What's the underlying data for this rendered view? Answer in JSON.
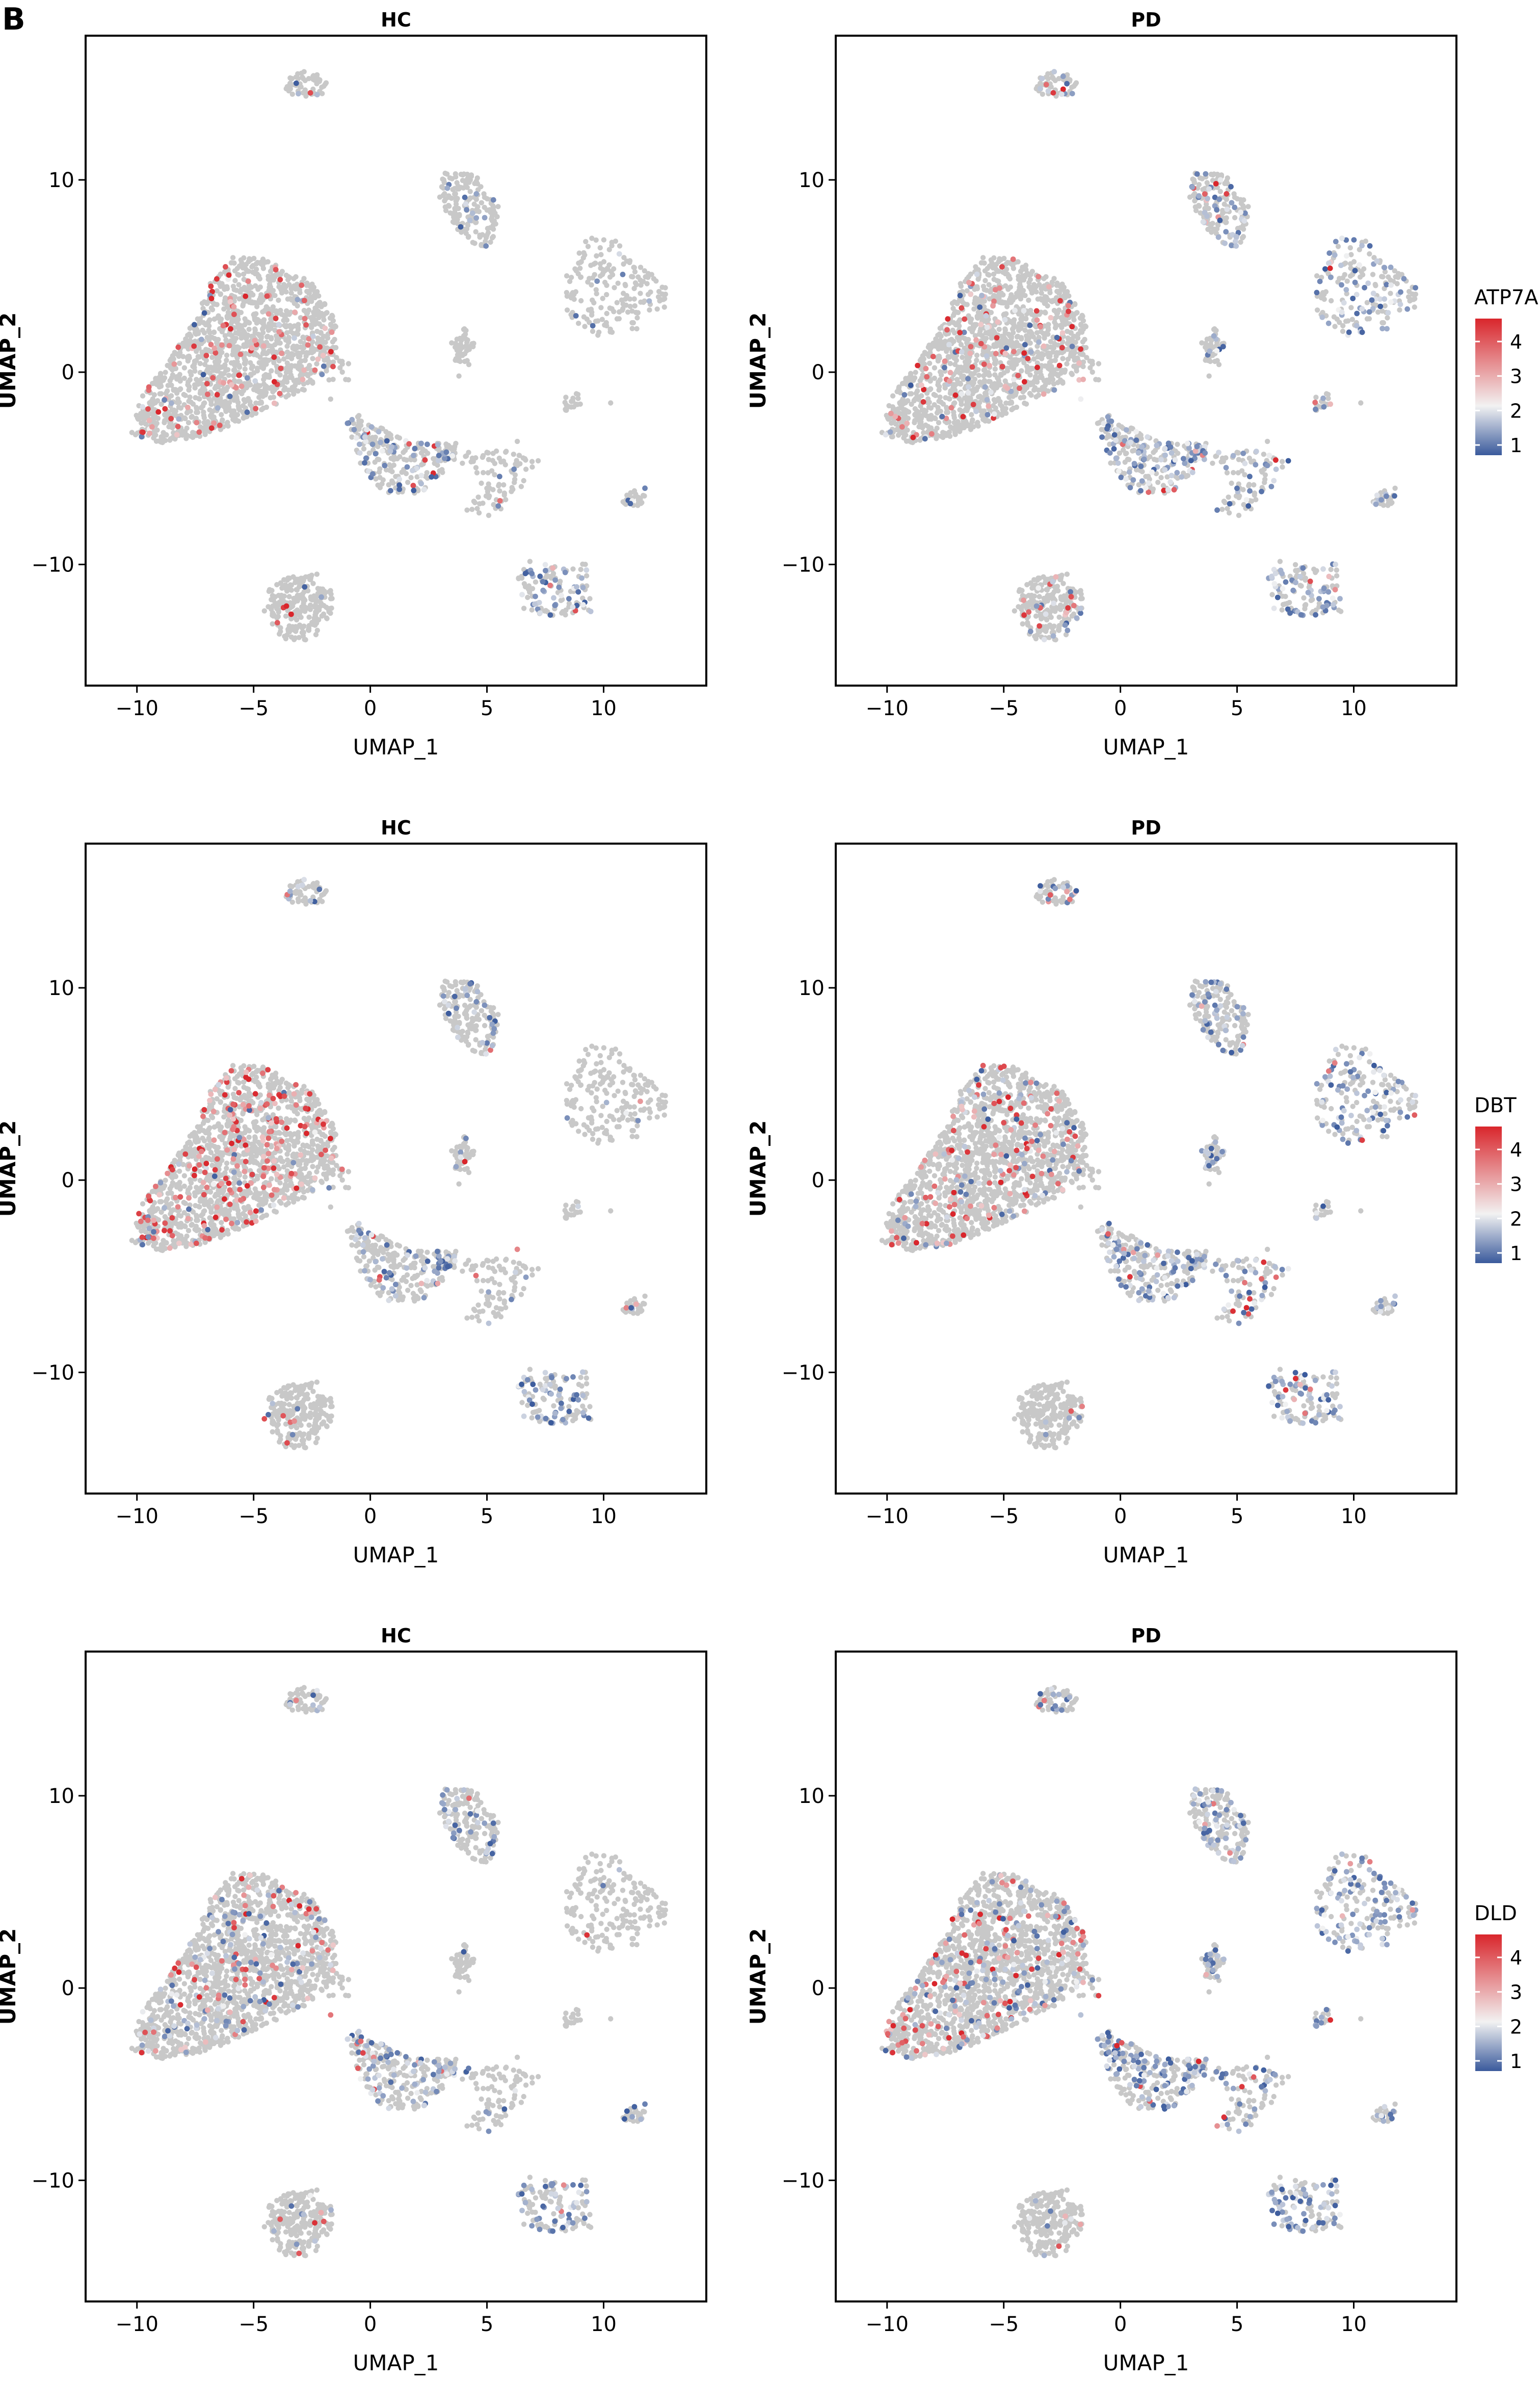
{
  "figure": {
    "panel_letter": "B"
  },
  "chart_data": [
    {
      "type": "scatter",
      "gene": "ATP7A",
      "title": "HC",
      "xlabel": "UMAP_1",
      "ylabel": "UMAP_2",
      "xlim": [
        -12.2,
        14.4
      ],
      "ylim": [
        -16.3,
        17.5
      ],
      "xticks": [
        -10,
        -5,
        0,
        5,
        10
      ],
      "yticks": [
        -10,
        0,
        10
      ],
      "grid": false,
      "color_scale": {
        "name": "ATP7A",
        "ticks": [
          1,
          2,
          3,
          4
        ],
        "low": "#3a5a9c",
        "mid": "#f2f2f2",
        "high": "#d9262c"
      },
      "levels": {
        "base": 0.05,
        "c0": 0.07,
        "c1": 0.06,
        "c2": 0.02,
        "c3": 0.08,
        "c4": 0.3,
        "c5": 0.06,
        "c6": 0.01,
        "c7": 0.4,
        "c8": 0.04,
        "c9": 0.05,
        "c10": 0.05
      },
      "red_share": {
        "c0": 0.8,
        "c1": 0.1,
        "c2": 0.1,
        "c3": 0.1,
        "c4": 0.05,
        "c5": 0.1,
        "c6": 0.1,
        "c7": 0.02,
        "c8": 0.8,
        "c9": 0.1,
        "c10": 0.1
      }
    },
    {
      "type": "scatter",
      "gene": "ATP7A",
      "title": "PD",
      "xlabel": "UMAP_1",
      "ylabel": "UMAP_2",
      "xlim": [
        -12.2,
        14.4
      ],
      "ylim": [
        -16.3,
        17.5
      ],
      "xticks": [
        -10,
        -5,
        0,
        5,
        10
      ],
      "yticks": [
        -10,
        0,
        10
      ],
      "grid": false,
      "color_scale": {
        "name": "ATP7A",
        "ticks": [
          1,
          2,
          3,
          4
        ],
        "low": "#3a5a9c",
        "mid": "#f2f2f2",
        "high": "#d9262c"
      },
      "levels": {
        "base": 0.06,
        "c0": 0.09,
        "c1": 0.28,
        "c2": 0.38,
        "c3": 0.18,
        "c4": 0.4,
        "c5": 0.32,
        "c6": 0.25,
        "c7": 0.35,
        "c8": 0.1,
        "c9": 0.2,
        "c10": 0.3
      },
      "red_share": {
        "c0": 0.7,
        "c1": 0.1,
        "c2": 0.05,
        "c3": 0.1,
        "c4": 0.05,
        "c5": 0.1,
        "c6": 0.1,
        "c7": 0.05,
        "c8": 0.6,
        "c9": 0.1,
        "c10": 0.05
      }
    },
    {
      "type": "scatter",
      "gene": "DBT",
      "title": "HC",
      "xlabel": "UMAP_1",
      "ylabel": "UMAP_2",
      "xlim": [
        -12.2,
        14.4
      ],
      "ylim": [
        -16.3,
        17.5
      ],
      "xticks": [
        -10,
        -5,
        0,
        5,
        10
      ],
      "yticks": [
        -10,
        0,
        10
      ],
      "grid": false,
      "color_scale": {
        "name": "DBT",
        "ticks": [
          1,
          2,
          3,
          4
        ],
        "low": "#3a5a9c",
        "mid": "#f2f2f2",
        "high": "#d9262c"
      },
      "levels": {
        "base": 0.05,
        "c0": 0.16,
        "c1": 0.2,
        "c2": 0.03,
        "c3": 0.12,
        "c4": 0.22,
        "c5": 0.1,
        "c6": 0.03,
        "c7": 0.38,
        "c8": 0.02,
        "c9": 0.08,
        "c10": 0.1
      },
      "red_share": {
        "c0": 0.85,
        "c1": 0.1,
        "c2": 0.5,
        "c3": 0.1,
        "c4": 0.15,
        "c5": 0.1,
        "c6": 0.1,
        "c7": 0.05,
        "c8": 0.5,
        "c9": 0.5,
        "c10": 0.2
      }
    },
    {
      "type": "scatter",
      "gene": "DBT",
      "title": "PD",
      "xlabel": "UMAP_1",
      "ylabel": "UMAP_2",
      "xlim": [
        -12.2,
        14.4
      ],
      "ylim": [
        -16.3,
        17.5
      ],
      "xticks": [
        -10,
        -5,
        0,
        5,
        10
      ],
      "yticks": [
        -10,
        0,
        10
      ],
      "grid": false,
      "color_scale": {
        "name": "DBT",
        "ticks": [
          1,
          2,
          3,
          4
        ],
        "low": "#3a5a9c",
        "mid": "#f2f2f2",
        "high": "#d9262c"
      },
      "levels": {
        "base": 0.06,
        "c0": 0.12,
        "c1": 0.3,
        "c2": 0.48,
        "c3": 0.2,
        "c4": 0.35,
        "c5": 0.3,
        "c6": 0.3,
        "c7": 0.4,
        "c8": 0.02,
        "c9": 0.2,
        "c10": 0.3
      },
      "red_share": {
        "c0": 0.6,
        "c1": 0.1,
        "c2": 0.05,
        "c3": 0.3,
        "c4": 0.05,
        "c5": 0.15,
        "c6": 0.1,
        "c7": 0.05,
        "c8": 0.5,
        "c9": 0.1,
        "c10": 0.05
      }
    },
    {
      "type": "scatter",
      "gene": "DLD",
      "title": "HC",
      "xlabel": "UMAP_1",
      "ylabel": "UMAP_2",
      "xlim": [
        -12.2,
        14.4
      ],
      "ylim": [
        -16.3,
        17.5
      ],
      "xticks": [
        -10,
        -5,
        0,
        5,
        10
      ],
      "yticks": [
        -10,
        0,
        10
      ],
      "grid": false,
      "color_scale": {
        "name": "DLD",
        "ticks": [
          1,
          2,
          3,
          4
        ],
        "low": "#3a5a9c",
        "mid": "#f2f2f2",
        "high": "#d9262c"
      },
      "levels": {
        "base": 0.05,
        "c0": 0.12,
        "c1": 0.2,
        "c2": 0.03,
        "c3": 0.12,
        "c4": 0.25,
        "c5": 0.1,
        "c6": 0.03,
        "c7": 0.4,
        "c8": 0.05,
        "c9": 0.08,
        "c10": 0.1
      },
      "red_share": {
        "c0": 0.5,
        "c1": 0.05,
        "c2": 0.3,
        "c3": 0.1,
        "c4": 0.1,
        "c5": 0.1,
        "c6": 0.1,
        "c7": 0.05,
        "c8": 0.3,
        "c9": 0.2,
        "c10": 0.1
      }
    },
    {
      "type": "scatter",
      "gene": "DLD",
      "title": "PD",
      "xlabel": "UMAP_1",
      "ylabel": "UMAP_2",
      "xlim": [
        -12.2,
        14.4
      ],
      "ylim": [
        -16.3,
        17.5
      ],
      "xticks": [
        -10,
        -5,
        0,
        5,
        10
      ],
      "yticks": [
        -10,
        0,
        10
      ],
      "grid": false,
      "color_scale": {
        "name": "DLD",
        "ticks": [
          1,
          2,
          3,
          4
        ],
        "low": "#3a5a9c",
        "mid": "#f2f2f2",
        "high": "#d9262c"
      },
      "levels": {
        "base": 0.06,
        "c0": 0.14,
        "c1": 0.3,
        "c2": 0.5,
        "c3": 0.2,
        "c4": 0.42,
        "c5": 0.35,
        "c6": 0.3,
        "c7": 0.42,
        "c8": 0.05,
        "c9": 0.3,
        "c10": 0.45
      },
      "red_share": {
        "c0": 0.4,
        "c1": 0.05,
        "c2": 0.05,
        "c3": 0.1,
        "c4": 0.05,
        "c5": 0.1,
        "c6": 0.1,
        "c7": 0.05,
        "c8": 0.3,
        "c9": 0.1,
        "c10": 0.05
      }
    }
  ]
}
